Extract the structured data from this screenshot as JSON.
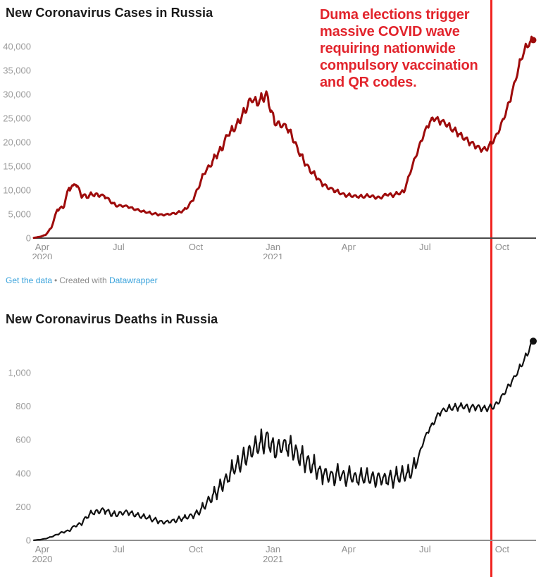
{
  "page": {
    "background": "#ffffff"
  },
  "annotation": {
    "text": "Duma elections trigger\nmassive COVID wave\nrequiring nationwide\ncompulsory vaccination\nand QR codes.",
    "color": "#e2242c",
    "line_color": "#f02421",
    "line_date": "2021-09-18"
  },
  "footer": {
    "get_data_label": "Get the data",
    "separator": "•",
    "created_with_label": "Created with",
    "datawrapper_label": "Datawrapper",
    "link_color": "#3aa3dc",
    "text_color": "#8b8b8b"
  },
  "chart_data": [
    {
      "type": "line",
      "title": "New Coronavirus Cases in Russia",
      "xlabel": "",
      "ylabel": "",
      "grid": false,
      "legend": "none",
      "xlim": [
        "2020-03-22",
        "2021-11-07"
      ],
      "ylim": [
        0,
        44000
      ],
      "axis_color": "#4a4a4a",
      "x_ticks": [
        {
          "date": "2020-04-01",
          "label": "Apr",
          "sublabel": "2020"
        },
        {
          "date": "2020-07-01",
          "label": "Jul"
        },
        {
          "date": "2020-10-01",
          "label": "Oct"
        },
        {
          "date": "2021-01-01",
          "label": "Jan",
          "sublabel": "2021"
        },
        {
          "date": "2021-04-01",
          "label": "Apr"
        },
        {
          "date": "2021-07-01",
          "label": "Jul"
        },
        {
          "date": "2021-10-01",
          "label": "Oct"
        }
      ],
      "y_ticks": [
        {
          "v": 0,
          "label": "0"
        },
        {
          "v": 5000,
          "label": "5,000"
        },
        {
          "v": 10000,
          "label": "10,000"
        },
        {
          "v": 15000,
          "label": "15,000"
        },
        {
          "v": 20000,
          "label": "20,000"
        },
        {
          "v": 25000,
          "label": "25,000"
        },
        {
          "v": 30000,
          "label": "30,000"
        },
        {
          "v": 35000,
          "label": "35,000"
        },
        {
          "v": 40000,
          "label": "40,000"
        }
      ],
      "series": [
        {
          "color": "#9e0b0b",
          "width": 3,
          "end_dot": true,
          "jitter": [
            {
              "until": "2020-06-10",
              "frac": 0.05
            },
            {
              "until": "2021-06-10",
              "frac": 0.035
            },
            {
              "until": "2021-09-20",
              "frac": 0.025
            },
            {
              "until": "2021-11-30",
              "frac": 0.018
            }
          ],
          "points": [
            [
              "2020-03-22",
              60
            ],
            [
              "2020-03-29",
              270
            ],
            [
              "2020-04-05",
              660
            ],
            [
              "2020-04-12",
              2190
            ],
            [
              "2020-04-19",
              6060
            ],
            [
              "2020-04-26",
              6360
            ],
            [
              "2020-05-03",
              10630
            ],
            [
              "2020-05-08",
              10700
            ],
            [
              "2020-05-11",
              11660
            ],
            [
              "2020-05-17",
              9200
            ],
            [
              "2020-05-24",
              8600
            ],
            [
              "2020-05-31",
              9160
            ],
            [
              "2020-06-07",
              8980
            ],
            [
              "2020-06-14",
              8840
            ],
            [
              "2020-06-21",
              7730
            ],
            [
              "2020-06-28",
              6790
            ],
            [
              "2020-07-05",
              6740
            ],
            [
              "2020-07-12",
              6610
            ],
            [
              "2020-07-19",
              6110
            ],
            [
              "2020-07-26",
              5770
            ],
            [
              "2020-08-02",
              5430
            ],
            [
              "2020-08-09",
              5190
            ],
            [
              "2020-08-16",
              4970
            ],
            [
              "2020-08-23",
              4850
            ],
            [
              "2020-08-30",
              4980
            ],
            [
              "2020-09-06",
              5210
            ],
            [
              "2020-09-13",
              5450
            ],
            [
              "2020-09-20",
              6200
            ],
            [
              "2020-09-27",
              7870
            ],
            [
              "2020-10-04",
              10500
            ],
            [
              "2020-10-11",
              13630
            ],
            [
              "2020-10-18",
              15100
            ],
            [
              "2020-10-25",
              17350
            ],
            [
              "2020-11-01",
              18660
            ],
            [
              "2020-11-08",
              21800
            ],
            [
              "2020-11-15",
              22570
            ],
            [
              "2020-11-22",
              24580
            ],
            [
              "2020-11-29",
              26680
            ],
            [
              "2020-12-06",
              29040
            ],
            [
              "2020-12-13",
              28080
            ],
            [
              "2020-12-20",
              29350
            ],
            [
              "2020-12-24",
              29940
            ],
            [
              "2020-12-27",
              28300
            ],
            [
              "2021-01-03",
              24150
            ],
            [
              "2021-01-10",
              23590
            ],
            [
              "2021-01-17",
              23350
            ],
            [
              "2021-01-24",
              21100
            ],
            [
              "2021-01-31",
              18360
            ],
            [
              "2021-02-07",
              16050
            ],
            [
              "2021-02-14",
              14180
            ],
            [
              "2021-02-21",
              12950
            ],
            [
              "2021-02-28",
              11530
            ],
            [
              "2021-03-07",
              10600
            ],
            [
              "2021-03-14",
              10080
            ],
            [
              "2021-03-21",
              9440
            ],
            [
              "2021-03-28",
              8980
            ],
            [
              "2021-04-04",
              8820
            ],
            [
              "2021-04-11",
              8700
            ],
            [
              "2021-04-18",
              8630
            ],
            [
              "2021-04-25",
              8830
            ],
            [
              "2021-05-02",
              8540
            ],
            [
              "2021-05-09",
              8420
            ],
            [
              "2021-05-16",
              9180
            ],
            [
              "2021-05-23",
              8950
            ],
            [
              "2021-05-30",
              9290
            ],
            [
              "2021-06-06",
              9650
            ],
            [
              "2021-06-13",
              13510
            ],
            [
              "2021-06-20",
              17040
            ],
            [
              "2021-06-27",
              20540
            ],
            [
              "2021-07-04",
              23540
            ],
            [
              "2021-07-11",
              25080
            ],
            [
              "2021-07-18",
              24630
            ],
            [
              "2021-07-25",
              24070
            ],
            [
              "2021-08-01",
              22850
            ],
            [
              "2021-08-08",
              22160
            ],
            [
              "2021-08-15",
              21050
            ],
            [
              "2021-08-22",
              20250
            ],
            [
              "2021-08-29",
              19450
            ],
            [
              "2021-09-05",
              18650
            ],
            [
              "2021-09-12",
              18550
            ],
            [
              "2021-09-19",
              19900
            ],
            [
              "2021-09-26",
              22040
            ],
            [
              "2021-10-03",
              25140
            ],
            [
              "2021-10-10",
              28650
            ],
            [
              "2021-10-17",
              33210
            ],
            [
              "2021-10-24",
              37680
            ],
            [
              "2021-10-31",
              40250
            ],
            [
              "2021-11-04",
              40900
            ],
            [
              "2021-11-07",
              41335
            ]
          ]
        }
      ]
    },
    {
      "type": "line",
      "title": "New Coronavirus Deaths in Russia",
      "xlabel": "",
      "ylabel": "",
      "grid": false,
      "legend": "none",
      "xlim": [
        "2020-03-22",
        "2021-11-07"
      ],
      "ylim": [
        0,
        1250
      ],
      "axis_color": "#8f8f8f",
      "x_ticks": [
        {
          "date": "2020-04-01",
          "label": "Apr",
          "sublabel": "2020"
        },
        {
          "date": "2020-07-01",
          "label": "Jul"
        },
        {
          "date": "2020-10-01",
          "label": "Oct"
        },
        {
          "date": "2021-01-01",
          "label": "Jan",
          "sublabel": "2021"
        },
        {
          "date": "2021-04-01",
          "label": "Apr"
        },
        {
          "date": "2021-07-01",
          "label": "Jul"
        },
        {
          "date": "2021-10-01",
          "label": "Oct"
        }
      ],
      "y_ticks": [
        {
          "v": 0,
          "label": "0"
        },
        {
          "v": 200,
          "label": "200"
        },
        {
          "v": 400,
          "label": "400"
        },
        {
          "v": 600,
          "label": "600"
        },
        {
          "v": 800,
          "label": "800"
        },
        {
          "v": 1000,
          "label": "1,000"
        }
      ],
      "series": [
        {
          "color": "#111111",
          "width": 2.2,
          "end_dot": true,
          "jitter": [
            {
              "until": "2020-10-01",
              "frac": 0.1
            },
            {
              "until": "2021-06-20",
              "frac": 0.12
            },
            {
              "until": "2021-09-25",
              "frac": 0.022
            },
            {
              "until": "2021-11-30",
              "frac": 0.015
            }
          ],
          "points": [
            [
              "2020-03-22",
              1
            ],
            [
              "2020-03-29",
              4
            ],
            [
              "2020-04-05",
              10
            ],
            [
              "2020-04-12",
              21
            ],
            [
              "2020-04-19",
              36
            ],
            [
              "2020-04-26",
              50
            ],
            [
              "2020-05-03",
              58
            ],
            [
              "2020-05-10",
              88
            ],
            [
              "2020-05-17",
              100
            ],
            [
              "2020-05-24",
              139
            ],
            [
              "2020-05-31",
              166
            ],
            [
              "2020-06-07",
              172
            ],
            [
              "2020-06-14",
              183
            ],
            [
              "2020-06-21",
              161
            ],
            [
              "2020-06-28",
              154
            ],
            [
              "2020-07-05",
              163
            ],
            [
              "2020-07-12",
              169
            ],
            [
              "2020-07-19",
              156
            ],
            [
              "2020-07-26",
              146
            ],
            [
              "2020-08-02",
              138
            ],
            [
              "2020-08-09",
              128
            ],
            [
              "2020-08-16",
              117
            ],
            [
              "2020-08-23",
              108
            ],
            [
              "2020-08-30",
              111
            ],
            [
              "2020-09-06",
              120
            ],
            [
              "2020-09-13",
              128
            ],
            [
              "2020-09-20",
              136
            ],
            [
              "2020-09-27",
              150
            ],
            [
              "2020-10-04",
              165
            ],
            [
              "2020-10-11",
              204
            ],
            [
              "2020-10-18",
              246
            ],
            [
              "2020-10-25",
              290
            ],
            [
              "2020-11-01",
              328
            ],
            [
              "2020-11-08",
              374
            ],
            [
              "2020-11-15",
              427
            ],
            [
              "2020-11-22",
              460
            ],
            [
              "2020-11-29",
              495
            ],
            [
              "2020-12-06",
              527
            ],
            [
              "2020-12-13",
              556
            ],
            [
              "2020-12-20",
              584
            ],
            [
              "2020-12-27",
              602
            ],
            [
              "2021-01-03",
              531
            ],
            [
              "2021-01-10",
              560
            ],
            [
              "2021-01-17",
              568
            ],
            [
              "2021-01-24",
              540
            ],
            [
              "2021-01-31",
              511
            ],
            [
              "2021-02-07",
              478
            ],
            [
              "2021-02-14",
              452
            ],
            [
              "2021-02-21",
              427
            ],
            [
              "2021-02-28",
              405
            ],
            [
              "2021-03-07",
              390
            ],
            [
              "2021-03-14",
              378
            ],
            [
              "2021-03-21",
              393
            ],
            [
              "2021-03-28",
              372
            ],
            [
              "2021-04-04",
              380
            ],
            [
              "2021-04-11",
              365
            ],
            [
              "2021-04-18",
              377
            ],
            [
              "2021-04-25",
              370
            ],
            [
              "2021-05-02",
              361
            ],
            [
              "2021-05-09",
              372
            ],
            [
              "2021-05-16",
              363
            ],
            [
              "2021-05-23",
              372
            ],
            [
              "2021-05-30",
              378
            ],
            [
              "2021-06-06",
              385
            ],
            [
              "2021-06-13",
              398
            ],
            [
              "2021-06-20",
              440
            ],
            [
              "2021-06-27",
              560
            ],
            [
              "2021-07-04",
              650
            ],
            [
              "2021-07-11",
              700
            ],
            [
              "2021-07-18",
              764
            ],
            [
              "2021-07-25",
              780
            ],
            [
              "2021-08-01",
              789
            ],
            [
              "2021-08-08",
              795
            ],
            [
              "2021-08-15",
              800
            ],
            [
              "2021-08-22",
              791
            ],
            [
              "2021-08-29",
              797
            ],
            [
              "2021-09-05",
              793
            ],
            [
              "2021-09-12",
              785
            ],
            [
              "2021-09-19",
              793
            ],
            [
              "2021-09-26",
              820
            ],
            [
              "2021-10-03",
              877
            ],
            [
              "2021-10-10",
              930
            ],
            [
              "2021-10-17",
              985
            ],
            [
              "2021-10-24",
              1045
            ],
            [
              "2021-10-31",
              1110
            ],
            [
              "2021-11-04",
              1165
            ],
            [
              "2021-11-07",
              1188
            ]
          ]
        }
      ]
    }
  ]
}
